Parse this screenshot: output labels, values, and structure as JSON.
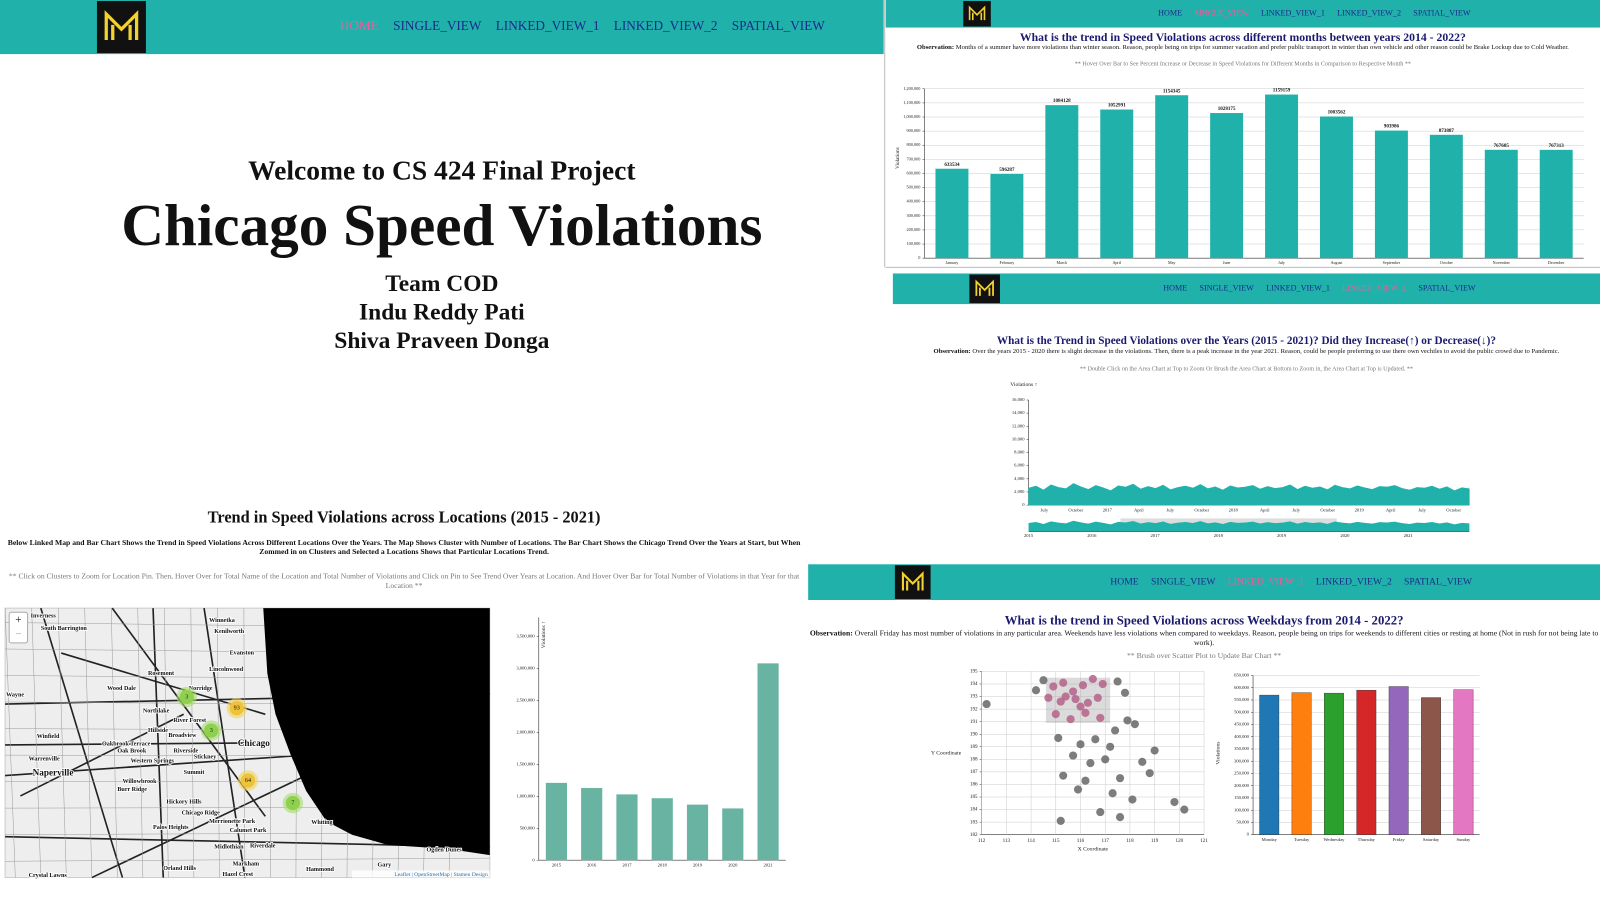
{
  "nav": {
    "items": [
      "HOME",
      "SINGLE_VIEW",
      "LINKED_VIEW_1",
      "LINKED_VIEW_2",
      "SPATIAL_VIEW"
    ]
  },
  "home": {
    "welcome": "Welcome to CS 424 Final Project",
    "title": "Chicago Speed Violations",
    "team": "Team COD",
    "members": [
      "Indu Reddy Pati",
      "Shiva Praveen Donga"
    ]
  },
  "single_view": {
    "title": "What is the trend in Speed Violations across different months between years 2014 - 2022?",
    "observation_label": "Observation:",
    "observation": "Months of a summer have more violations than winter season. Reason, people being on trips for summer vacation and prefer public transport in winter than own vehicle and other reason could be Brake Lockup due to Cold Weather.",
    "hint": "** Hover Over Bar to See Percent Increase or Decrease in Speed Violations for Different Months in Comparison to Respective Month **"
  },
  "linked_view_2": {
    "title": "What is the Trend in Speed Violations over the Years (2015 - 2021)? Did they Increase(↑) or Decrease(↓)?",
    "observation_label": "Observation:",
    "observation": "Over the years 2015 - 2020 there is slight decrease in the violations. Then, there is a peak increase in the year 2021. Reason, could be people preferring to use there own vechiles to avoid the public crowd due to Pandemic.",
    "hint": "** Double Click on the Area Chart at Top to Zoom Or Brush the Area Chart at Bottom to Zoom in, the Area Chart at Top is Updated. **"
  },
  "linked_view_1": {
    "title": "What is the trend in Speed Violations across Weekdays from 2014 - 2022?",
    "observation_label": "Observation:",
    "observation": "Overall Friday has most number of violations in any particular area. Weekends have less violations when compared to weekdays. Reason, people being on trips for weekends to different cities or resting at home (Not in rush for not being late to work).",
    "hint": "** Brush over Scatter Plot to Update Bar Chart **"
  },
  "spatial_view": {
    "title": "Trend in Speed Violations across Locations (2015 - 2021)",
    "description": "Below Linked Map and Bar Chart Shows the Trend in Speed Violations Across Different Locations Over the Years. The Map Shows Cluster with Number of Locations. The Bar Chart Shows the Chicago Trend Over the Years at Start, but When Zommed in on Clusters and Selected a Locations Shows that Particular Locations Trend.",
    "hint": "** Click on Clusters to Zoom for Location Pin. Then, Hover Over for Total Name of the Location and Total Number of Violations and Click on Pin to See Trend Over Years at Location. And Hover Over Bar for Total Number of Violations in that Year for that Location **",
    "map": {
      "zoom_in": "+",
      "zoom_out": "−",
      "attribution": "Leaflet | OpenStreetMap | Stamen Design",
      "places": [
        "Inverness",
        "South Barrington",
        "Winnetka",
        "Kenilworth",
        "Evanston",
        "Lincolnwood",
        "Rosemont",
        "Wood Dale",
        "Norridge",
        "Wayne",
        "Northlake",
        "River Forest",
        "Hillside",
        "Broadview",
        "Winfield",
        "Oakbrook Terrace",
        "Oak Brook",
        "Riverside",
        "Chicago",
        "Warrenville",
        "Western Springs",
        "Stickney",
        "Naperville",
        "Summit",
        "Willowbrook",
        "Burr Ridge",
        "Hickory Hills",
        "Chicago Ridge",
        "Merrionette Park",
        "Calumet Park",
        "Palos Heights",
        "Whiting",
        "Midlothian",
        "Riverdale",
        "Markham",
        "Ogden Dunes",
        "Gary",
        "Orland Hills",
        "Hazel Crest",
        "Hammond",
        "Crystal Lawns"
      ],
      "clusters": [
        3,
        93,
        3,
        64,
        7
      ]
    }
  },
  "chart_data": [
    {
      "type": "bar",
      "y_label": "Violations",
      "color": "#20b2aa",
      "show_values": true,
      "categories": [
        "January",
        "February",
        "March",
        "April",
        "May",
        "June",
        "July",
        "August",
        "September",
        "October",
        "November",
        "December"
      ],
      "values": [
        633534,
        596287,
        1084128,
        1052991,
        1154345,
        1028175,
        1159159,
        1003562,
        903986,
        873887,
        767685,
        767313
      ],
      "ylim": [
        0,
        1200000
      ],
      "grid": true,
      "yticks": [
        0,
        {
          "value": 100000,
          "label": "100,000"
        },
        {
          "value": 200000,
          "label": "200,000"
        },
        {
          "value": 300000,
          "label": "300,000"
        },
        {
          "value": 400000,
          "label": "400,000"
        },
        {
          "value": 500000,
          "label": "500,000"
        },
        {
          "value": 600000,
          "label": "600,000"
        },
        {
          "value": 700000,
          "label": "700,000"
        },
        {
          "value": 800000,
          "label": "800,000"
        },
        {
          "value": 900000,
          "label": "900,000"
        },
        {
          "value": 1000000,
          "label": "1,000,000"
        },
        {
          "value": 1100000,
          "label": "1,100,000"
        },
        {
          "value": 1200000,
          "label": "1,200,000"
        }
      ]
    },
    {
      "type": "area",
      "y_label": "Violations ↑",
      "color": "#20b2aa",
      "x_labels": [
        "July",
        "October",
        "2017",
        "April",
        "July",
        "October",
        "2018",
        "April",
        "July",
        "October",
        "2019",
        "April",
        "July",
        "October"
      ],
      "context_ticks": [
        2015,
        2016,
        2017,
        2018,
        2019,
        2020,
        2021
      ],
      "values": [
        2600,
        2900,
        2300,
        3100,
        2700,
        2500,
        3300,
        2800,
        2400,
        3000,
        2650,
        2200,
        2950,
        2750,
        3200,
        2450,
        2850,
        2550,
        3050,
        2350,
        2700,
        2900,
        2600,
        3150,
        2500,
        2800,
        2300,
        2950,
        2650,
        2750,
        3000,
        2450,
        2850,
        2550,
        2700,
        3100,
        2400,
        2900,
        2600,
        2800,
        2350,
        3050,
        2700,
        2500,
        2950,
        2650,
        2400,
        2850,
        2750,
        3000,
        2550,
        2300,
        2700,
        2600,
        2900,
        2450,
        2800,
        2200,
        2650,
        2500
      ],
      "ylim": [
        0,
        16000
      ],
      "yticks": [
        0,
        {
          "value": 2000,
          "label": "2,000"
        },
        {
          "value": 4000,
          "label": "4,000"
        },
        {
          "value": 6000,
          "label": "6,000"
        },
        {
          "value": 8000,
          "label": "8,000"
        },
        {
          "value": 10000,
          "label": "10,000"
        },
        {
          "value": 12000,
          "label": "12,000"
        },
        {
          "value": 14000,
          "label": "14,000"
        },
        {
          "value": 16000,
          "label": "16,000"
        }
      ]
    },
    {
      "type": "scatter",
      "x_label": "X Coordinate",
      "y_label": "Y Coordinate",
      "color": "#666666",
      "selected_color": "#b5628a",
      "grid": true,
      "brush": {
        "xlim": [
          114.6,
          117.2
        ],
        "ylim": [
          190.9,
          194.5
        ]
      },
      "x": [
        114.9,
        115.3,
        115.7,
        116.1,
        116.5,
        116.9,
        114.7,
        115.2,
        115.8,
        116.3,
        116.7,
        115.0,
        115.6,
        116.2,
        116.8,
        115.4,
        116.0,
        112.2,
        114.2,
        114.5,
        117.5,
        117.8,
        117.9,
        118.2,
        117.4,
        115.1,
        116.0,
        116.6,
        117.2,
        115.7,
        116.4,
        117.0,
        118.5,
        119.0,
        118.8,
        117.6,
        116.2,
        115.3,
        115.9,
        117.3,
        118.1,
        116.8,
        117.6,
        115.2,
        119.8,
        120.2
      ],
      "y": [
        193.8,
        194.1,
        193.4,
        193.9,
        194.4,
        194.0,
        192.9,
        192.6,
        192.8,
        192.5,
        192.9,
        191.6,
        191.2,
        191.7,
        191.3,
        193.0,
        192.2,
        192.4,
        193.5,
        194.3,
        194.2,
        193.3,
        191.1,
        190.8,
        190.3,
        189.7,
        189.2,
        189.6,
        189.0,
        188.3,
        187.7,
        188.0,
        187.8,
        188.7,
        186.9,
        186.5,
        186.3,
        186.7,
        185.6,
        185.3,
        184.8,
        183.8,
        183.4,
        183.1,
        184.6,
        184.0
      ],
      "xlim": [
        112,
        121
      ],
      "xticks": [
        112,
        113,
        114,
        115,
        116,
        117,
        118,
        119,
        120,
        121
      ],
      "ylim": [
        182,
        195
      ],
      "yticks": [
        182,
        183,
        184,
        185,
        186,
        187,
        188,
        189,
        190,
        191,
        192,
        193,
        194,
        195
      ]
    },
    {
      "type": "bar",
      "y_label": "Violations",
      "grid": true,
      "categories": [
        "Monday",
        "Tuesday",
        "Wednesday",
        "Thursday",
        "Friday",
        "Saturday",
        "Sunday"
      ],
      "values": [
        570000,
        580000,
        578000,
        590000,
        605000,
        560000,
        592000
      ],
      "colors": [
        "#1f77b4",
        "#ff7f0e",
        "#2ca02c",
        "#d62728",
        "#9467bd",
        "#8c564b",
        "#e377c2"
      ],
      "ylim": [
        0,
        650000
      ],
      "yticks": [
        0,
        {
          "value": 50000,
          "label": "50,000"
        },
        {
          "value": 100000,
          "label": "100,000"
        },
        {
          "value": 150000,
          "label": "150,000"
        },
        {
          "value": 200000,
          "label": "200,000"
        },
        {
          "value": 250000,
          "label": "250,000"
        },
        {
          "value": 300000,
          "label": "300,000"
        },
        {
          "value": 350000,
          "label": "350,000"
        },
        {
          "value": 400000,
          "label": "400,000"
        },
        {
          "value": 450000,
          "label": "450,000"
        },
        {
          "value": 500000,
          "label": "500,000"
        },
        {
          "value": 550000,
          "label": "550,000"
        },
        {
          "value": 600000,
          "label": "600,000"
        },
        {
          "value": 650000,
          "label": "650,000"
        }
      ]
    },
    {
      "type": "bar",
      "y_label": "Violations ↑",
      "color": "#69b3a2",
      "grid": false,
      "categories": [
        "2015",
        "2016",
        "2017",
        "2018",
        "2019",
        "2020",
        "2021"
      ],
      "values": [
        1210000,
        1130000,
        1030000,
        970000,
        870000,
        810000,
        3080000
      ],
      "ylim": [
        0,
        3800000
      ],
      "yticks": [
        0,
        {
          "value": 500000,
          "label": "500,000"
        },
        {
          "value": 1000000,
          "label": "1,000,000"
        },
        {
          "value": 1500000,
          "label": "1,500,000"
        },
        {
          "value": 2000000,
          "label": "2,000,000"
        },
        {
          "value": 2500000,
          "label": "2,500,000"
        },
        {
          "value": 3000000,
          "label": "3,000,000"
        },
        {
          "value": 3500000,
          "label": "3,500,000"
        }
      ]
    }
  ]
}
